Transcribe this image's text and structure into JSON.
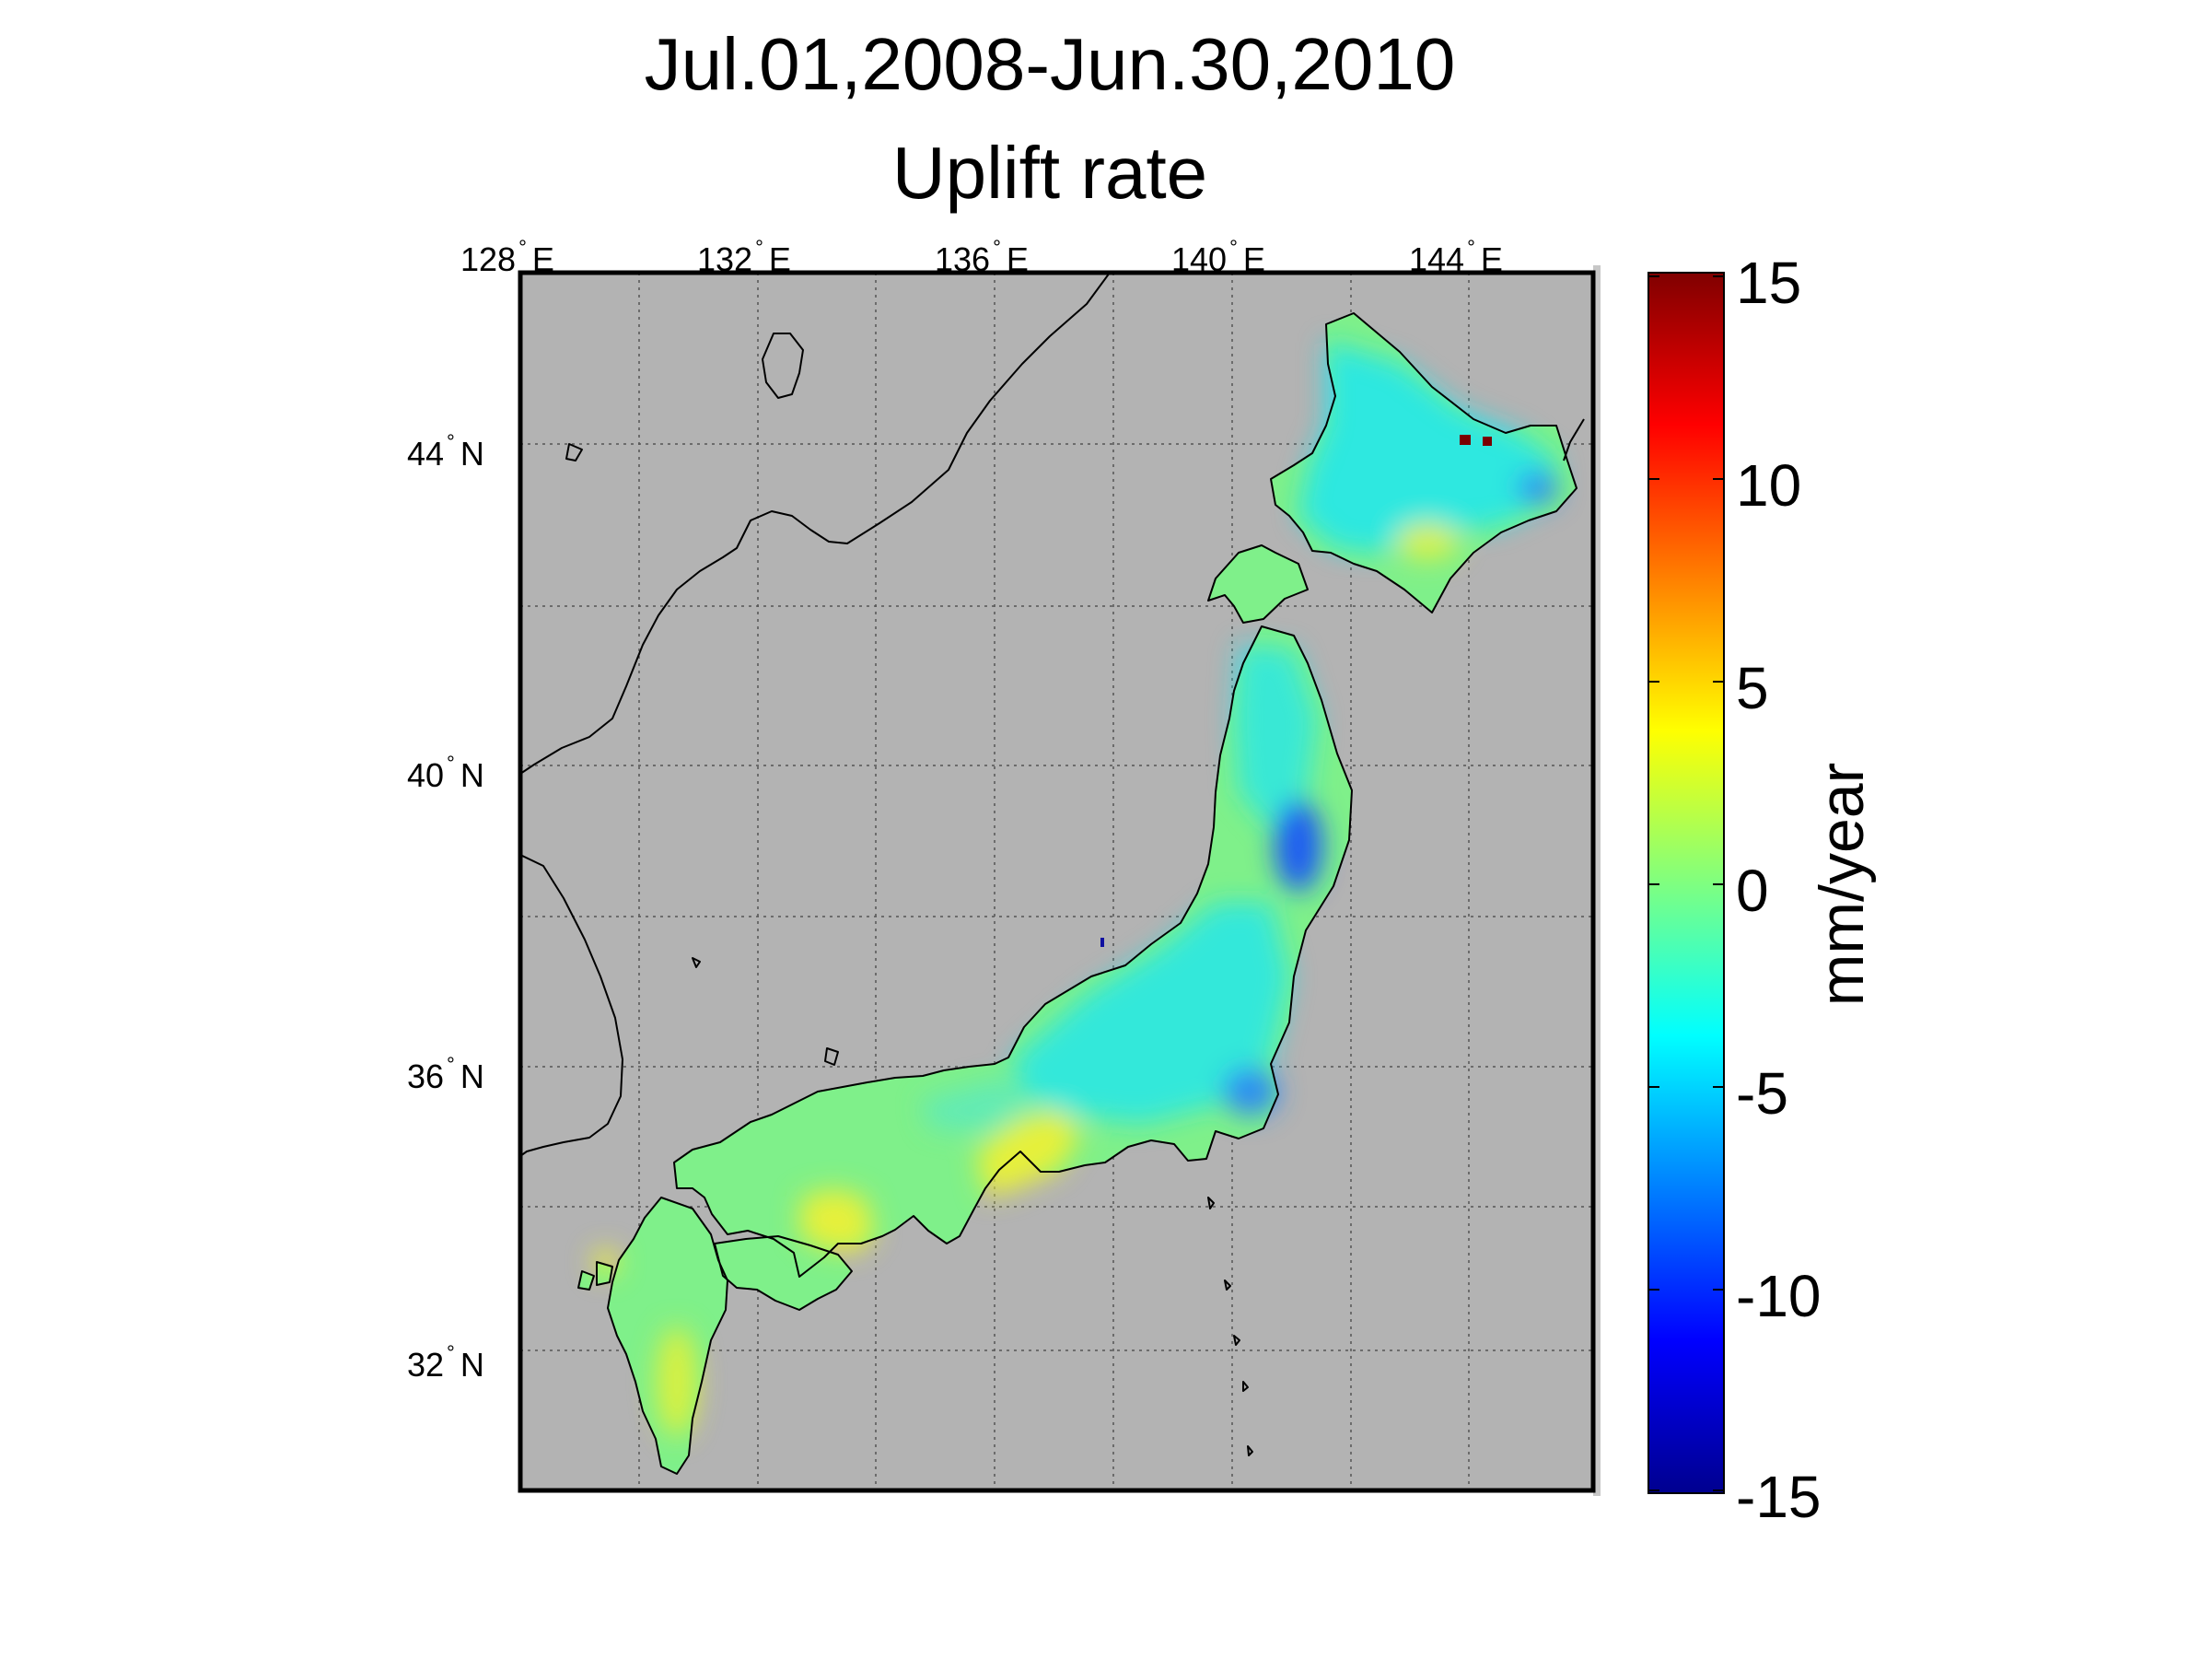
{
  "title": "Jul.01,2008-Jun.30,2010",
  "subtitle": "Uplift rate",
  "longitude_ticks": [
    {
      "deg": "128",
      "hem": "E"
    },
    {
      "deg": "132",
      "hem": "E"
    },
    {
      "deg": "136",
      "hem": "E"
    },
    {
      "deg": "140",
      "hem": "E"
    },
    {
      "deg": "144",
      "hem": "E"
    }
  ],
  "latitude_ticks": [
    {
      "deg": "44",
      "hem": "N"
    },
    {
      "deg": "40",
      "hem": "N"
    },
    {
      "deg": "36",
      "hem": "N"
    },
    {
      "deg": "32",
      "hem": "N"
    }
  ],
  "colorbar": {
    "unit": "mm/year",
    "labels": [
      "15",
      "10",
      "5",
      "0",
      "-5",
      "-10",
      "-15"
    ],
    "min": -15,
    "max": 15,
    "colormap": "jet"
  },
  "colors": {
    "ocean": "#b3b3b3",
    "land_neutral": "#7ff08a",
    "subsidence": "#22e6ee",
    "strong_subsidence": "#1c5cf2",
    "uplift": "#e6f03a",
    "extreme_uplift": "#7a0000"
  }
}
